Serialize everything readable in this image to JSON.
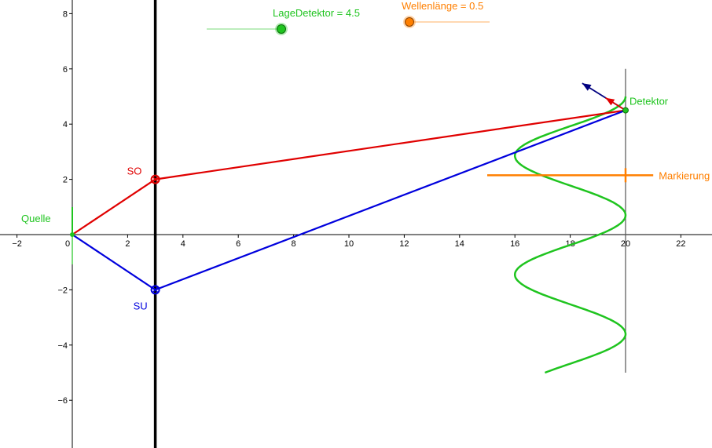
{
  "axes": {
    "x_ticks": [
      "−2",
      "0",
      "2",
      "4",
      "6",
      "8",
      "10",
      "12",
      "14",
      "16",
      "18",
      "20",
      "22"
    ],
    "x_tick_values": [
      -2,
      0,
      2,
      4,
      6,
      8,
      10,
      12,
      14,
      16,
      18,
      20,
      22
    ],
    "y_ticks": [
      "8",
      "6",
      "4",
      "2",
      "−2",
      "−4",
      "−6"
    ],
    "y_tick_values": [
      8,
      6,
      4,
      2,
      -2,
      -4,
      -6
    ],
    "x_range": [
      -2.6,
      23.1
    ],
    "y_range": [
      -7.7,
      8.5
    ]
  },
  "sliders": {
    "lage_label": "LageDetektor = 4.5",
    "lage_value": 4.5,
    "wellen_label": "Wellenlänge = 0.5",
    "wellen_value": 0.5
  },
  "labels": {
    "quelle": "Quelle",
    "so": "SO",
    "su": "SU",
    "detektor": "Detektor",
    "markierung": "Markierung"
  },
  "geometry": {
    "quelle": [
      0,
      0
    ],
    "so": [
      3,
      2
    ],
    "su": [
      3,
      -2
    ],
    "detektor": [
      20,
      4.5
    ],
    "barrier_x": 3,
    "detector_line_x": 20,
    "detector_line_y": [
      -5,
      6
    ],
    "markierung_y": 2.15,
    "markierung_x": [
      15,
      21
    ],
    "wave_center_x": 18,
    "wave_amplitude": 2,
    "wave_period": 4.3,
    "wave_y_range": [
      -5,
      5
    ]
  },
  "colors": {
    "green": "#1fc41f",
    "red": "#e00000",
    "blue": "#0000dd",
    "orange": "#ff7f00",
    "black": "#000000",
    "gray": "#555555"
  }
}
